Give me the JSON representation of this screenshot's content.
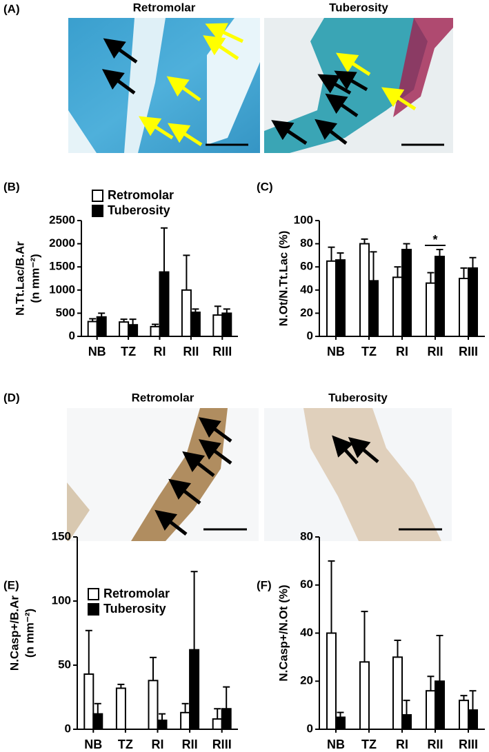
{
  "figure": {
    "panel_a": {
      "label": "(A)",
      "images": [
        "Retromolar",
        "Tuberosity"
      ]
    },
    "panel_d": {
      "label": "(D)",
      "images": [
        "Retromolar",
        "Tuberosity"
      ]
    }
  },
  "chart_data": [
    {
      "type": "bar",
      "panel": "(B)",
      "ylabel": [
        "N.Tt.Lac/B.Ar",
        "(n mm⁻²)"
      ],
      "categories": [
        "NB",
        "TZ",
        "RI",
        "RII",
        "RIII"
      ],
      "series": [
        {
          "name": "Retromolar",
          "color": "#ffffff",
          "values": [
            320,
            310,
            210,
            1000,
            460
          ],
          "errors": [
            60,
            60,
            50,
            750,
            190
          ]
        },
        {
          "name": "Tuberosity",
          "color": "#000000",
          "values": [
            420,
            250,
            1390,
            520,
            500
          ],
          "errors": [
            80,
            120,
            950,
            70,
            90
          ]
        }
      ],
      "ylim": [
        0,
        2500
      ],
      "yticks": [
        0,
        500,
        1000,
        1500,
        2000,
        2500
      ],
      "legend": "upper left"
    },
    {
      "type": "bar",
      "panel": "(C)",
      "ylabel": [
        "N.Ot/N.Tt.Lac (%)"
      ],
      "categories": [
        "NB",
        "TZ",
        "RI",
        "RII",
        "RIII"
      ],
      "series": [
        {
          "name": "Retromolar",
          "color": "#ffffff",
          "values": [
            65,
            80,
            51,
            46,
            50
          ],
          "errors": [
            12,
            4,
            9,
            9,
            9
          ]
        },
        {
          "name": "Tuberosity",
          "color": "#000000",
          "values": [
            66,
            48,
            75,
            69,
            59
          ],
          "errors": [
            6,
            25,
            5,
            6,
            9
          ]
        }
      ],
      "ylim": [
        0,
        100
      ],
      "yticks": [
        0,
        20,
        40,
        60,
        80,
        100
      ],
      "annotations": [
        {
          "text": "*",
          "category": "RII"
        }
      ]
    },
    {
      "type": "bar",
      "panel": "(E)",
      "ylabel": [
        "N.Casp+/B.Ar",
        "(n mm⁻²)"
      ],
      "categories": [
        "NB",
        "TZ",
        "RI",
        "RII",
        "RIII"
      ],
      "series": [
        {
          "name": "Retromolar",
          "color": "#ffffff",
          "values": [
            43,
            32,
            38,
            13,
            8
          ],
          "errors": [
            34,
            3,
            18,
            7,
            8
          ]
        },
        {
          "name": "Tuberosity",
          "color": "#000000",
          "values": [
            12,
            0,
            7,
            62,
            16
          ],
          "errors": [
            8,
            0,
            5,
            61,
            17
          ]
        }
      ],
      "ylim": [
        0,
        150
      ],
      "yticks": [
        0,
        50,
        100,
        150
      ],
      "legend": "upper left"
    },
    {
      "type": "bar",
      "panel": "(F)",
      "ylabel": [
        "N.Casp+/N.Ot (%)"
      ],
      "categories": [
        "NB",
        "TZ",
        "RI",
        "RII",
        "RIII"
      ],
      "series": [
        {
          "name": "Retromolar",
          "color": "#ffffff",
          "values": [
            40,
            28,
            30,
            16,
            12
          ],
          "errors": [
            30,
            21,
            7,
            6,
            2
          ]
        },
        {
          "name": "Tuberosity",
          "color": "#000000",
          "values": [
            5,
            0,
            6,
            20,
            8
          ],
          "errors": [
            2,
            0,
            6,
            19,
            8
          ]
        }
      ],
      "ylim": [
        0,
        80
      ],
      "yticks": [
        0,
        20,
        40,
        60,
        80
      ]
    }
  ]
}
